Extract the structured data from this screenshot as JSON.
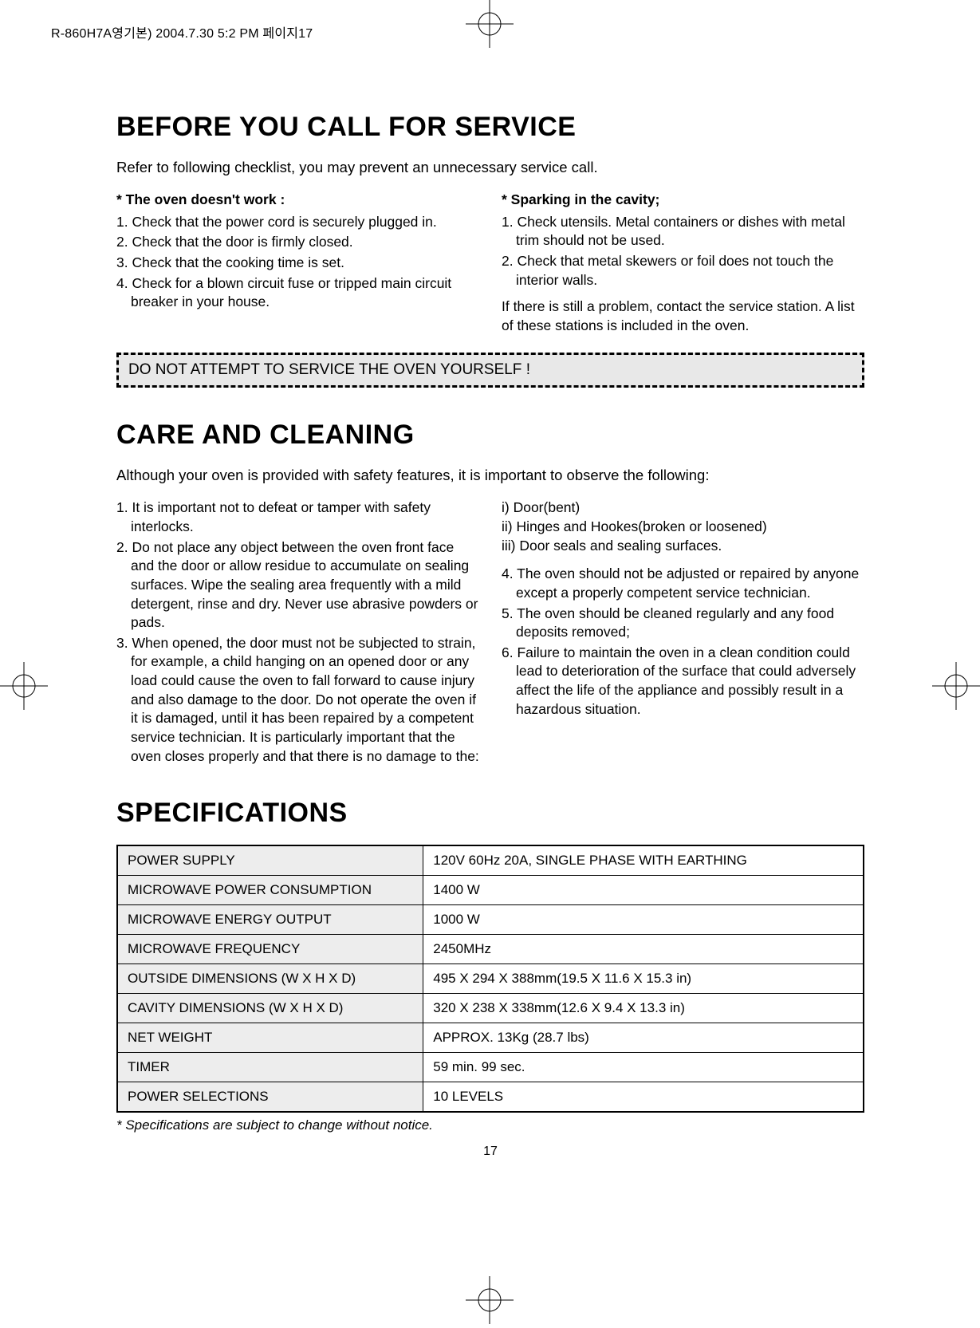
{
  "meta": {
    "header_strip": "R-860H7A영기본)  2004.7.30 5:2 PM  페이지17"
  },
  "section1": {
    "title": "BEFORE YOU CALL FOR SERVICE",
    "intro": "Refer to following checklist, you may prevent an unnecessary service call.",
    "left": {
      "head": "*  The oven doesn't work :",
      "items": [
        "1. Check that the power cord is securely plugged in.",
        "2. Check that the door is firmly closed.",
        "3. Check that the cooking time is set.",
        "4. Check for a blown circuit fuse or tripped main circuit breaker in your house."
      ]
    },
    "right": {
      "head": "* Sparking in the cavity;",
      "items": [
        "1. Check utensils. Metal containers or dishes with metal trim should not be used.",
        "2. Check that metal skewers or foil does not touch the interior walls."
      ],
      "after": "If there is still a problem, contact the service station. A list of these stations is included in the oven."
    },
    "warning": "DO NOT ATTEMPT TO SERVICE THE OVEN YOURSELF !"
  },
  "section2": {
    "title": "CARE AND CLEANING",
    "intro": "Although your oven is provided with safety features, it is important to observe the following:",
    "left_items": [
      "1. It is important not to defeat or tamper with safety interlocks.",
      "2. Do not place any object between the oven front face and the door or allow residue to accumulate on sealing surfaces. Wipe the sealing area frequently with a mild detergent, rinse and dry. Never use abrasive powders or pads.",
      "3. When opened, the door must not be subjected to strain, for example, a child hanging on an opened door or any load could cause the oven to fall forward to cause injury and also damage to the door. Do not operate the oven if it is damaged, until it has been repaired by a competent service technician. It is particularly important that the oven closes properly and that there is no damage to the:"
    ],
    "right_roman": [
      "i)  Door(bent)",
      "ii) Hinges and Hookes(broken or loosened)",
      "iii) Door seals and sealing surfaces."
    ],
    "right_items": [
      "4. The oven should not be adjusted or repaired by anyone except a properly competent service technician.",
      "5. The oven should be cleaned regularly and any food  deposits removed;",
      "6. Failure to maintain the oven in a clean condition could lead to deterioration of the surface that could adversely affect the life of the appliance and possibly result in a hazardous situation."
    ]
  },
  "section3": {
    "title": "SPECIFICATIONS",
    "rows": [
      [
        "POWER SUPPLY",
        "120V 60Hz 20A, SINGLE PHASE WITH EARTHING"
      ],
      [
        "MICROWAVE POWER CONSUMPTION",
        "1400 W"
      ],
      [
        "MICROWAVE ENERGY OUTPUT",
        "1000 W"
      ],
      [
        "MICROWAVE FREQUENCY",
        "2450MHz"
      ],
      [
        "OUTSIDE DIMENSIONS (W X H X D)",
        "495 X 294 X 388mm(19.5 X 11.6 X 15.3 in)"
      ],
      [
        "CAVITY DIMENSIONS (W X H X D)",
        "320 X 238 X 338mm(12.6 X 9.4 X 13.3 in)"
      ],
      [
        "NET WEIGHT",
        "APPROX. 13Kg (28.7 lbs)"
      ],
      [
        "TIMER",
        "59 min. 99 sec."
      ],
      [
        "POWER SELECTIONS",
        "10 LEVELS"
      ]
    ],
    "footnote": "* Specifications are subject to change without notice.",
    "page_number": "17"
  },
  "style": {
    "bg": "#ffffff",
    "text": "#000000",
    "warning_bg": "#e8e8e8",
    "table_label_bg": "#ededed",
    "title_fontsize": 34,
    "body_fontsize": 17.5
  }
}
